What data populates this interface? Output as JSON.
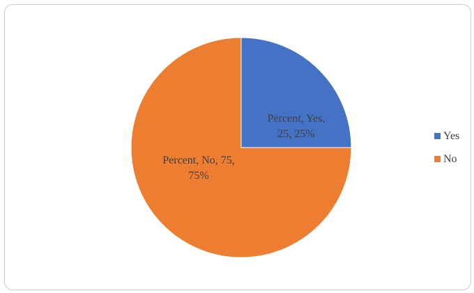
{
  "chart_data": {
    "type": "pie",
    "series": [
      {
        "name": "Percent",
        "categories": [
          "Yes",
          "No"
        ],
        "values": [
          25,
          75
        ],
        "percentages": [
          "25%",
          "75%"
        ]
      }
    ],
    "data_labels": [
      [
        "Percent, Yes,",
        "25, 25%"
      ],
      [
        "Percent, No, 75,",
        "75%"
      ]
    ],
    "legend": {
      "placement": "right",
      "entries": [
        "Yes",
        "No"
      ]
    },
    "colors": [
      "#4472C4",
      "#ED7D31"
    ],
    "start_angle_deg": 0,
    "direction": "clockwise"
  }
}
